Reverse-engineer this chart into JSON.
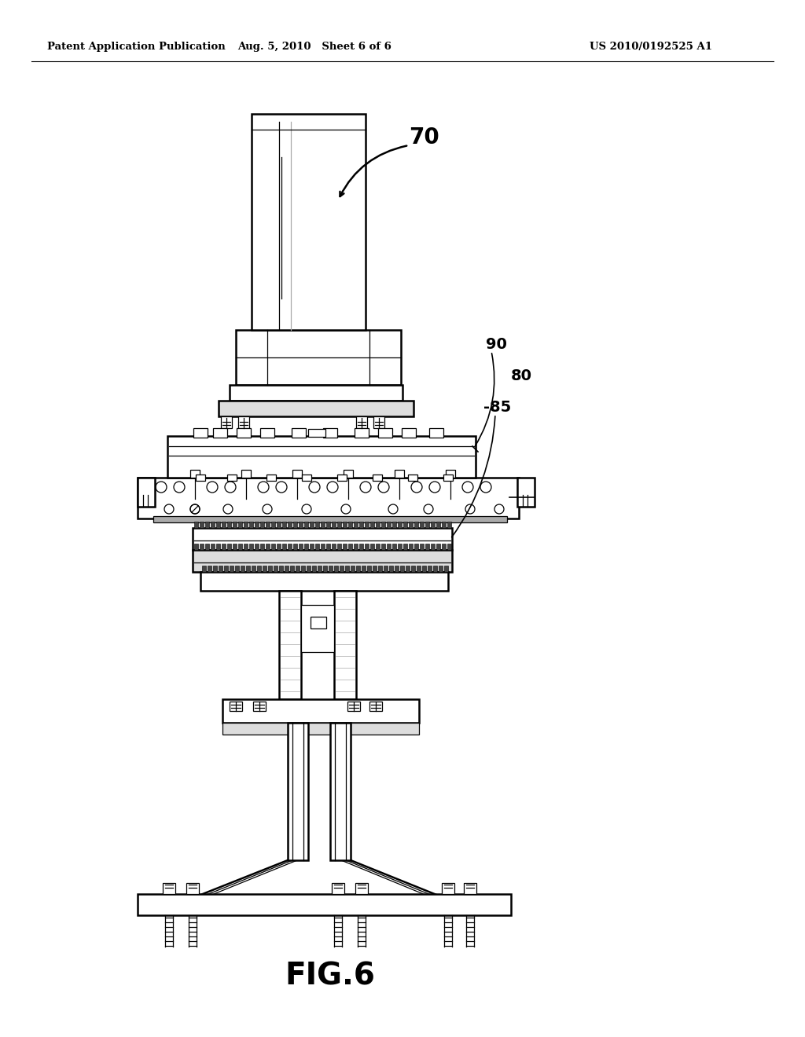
{
  "bg_color": "#ffffff",
  "line_color": "#000000",
  "title_left": "Patent Application Publication",
  "title_mid": "Aug. 5, 2010   Sheet 6 of 6",
  "title_right": "US 2010/0192525 A1",
  "fig_label": "FIG.6",
  "gray_light": "#cccccc",
  "gray_mid": "#888888",
  "gray_dark": "#555555"
}
